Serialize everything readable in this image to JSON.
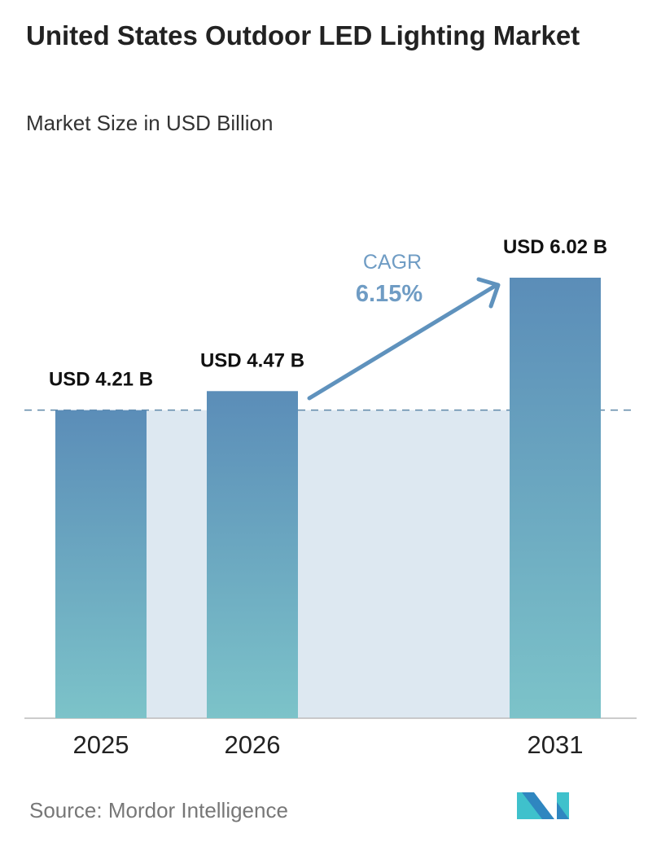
{
  "chart_data": {
    "type": "bar",
    "title": "United States Outdoor LED Lighting Market",
    "subtitle": "Market Size in USD Billion",
    "categories": [
      "2025",
      "2026",
      "2031"
    ],
    "values": [
      4.21,
      4.47,
      6.02
    ],
    "data_labels": [
      "USD 4.21 B",
      "USD 4.47 B",
      "USD 6.02 B"
    ],
    "ylim": [
      0,
      6.02
    ],
    "grid": false,
    "annotation": {
      "label": "CAGR",
      "value": "6.15%"
    },
    "colors": {
      "bar_top": "#5b8db8",
      "bar_bottom": "#7cc3c9",
      "band": "#dde8f1",
      "arrow": "#5f92bd",
      "cagr_label": "#6f9cc4"
    }
  },
  "source": "Source:  Mordor Intelligence",
  "logo": "Mordor Intelligence"
}
